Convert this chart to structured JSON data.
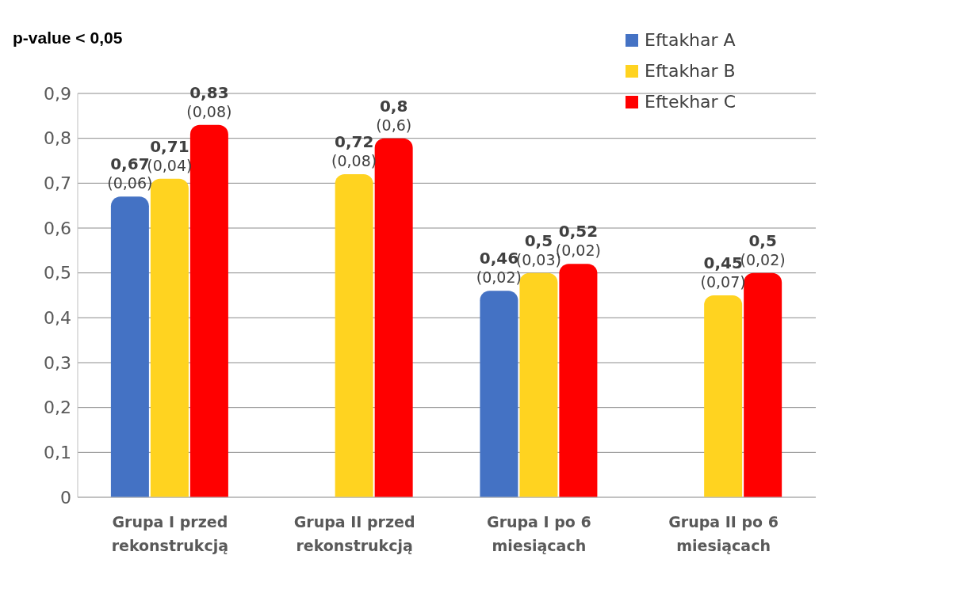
{
  "chart_data": {
    "type": "bar",
    "title": "p-value < 0,05",
    "categories": [
      "Grupa I przed rekonstrukcją",
      "Grupa II przed rekonstrukcją",
      "Grupa I po 6 miesiącach",
      "Grupa II po 6 miesiącach"
    ],
    "series": [
      {
        "name": "Eftakhar A",
        "color": "#4472c4",
        "values": [
          0.67,
          null,
          0.46,
          null
        ],
        "value_labels": [
          "0,67 (0,06)",
          null,
          "0,46 (0,02)",
          null
        ]
      },
      {
        "name": "Eftakhar B",
        "color": "#ffd320",
        "values": [
          0.71,
          0.72,
          0.5,
          0.45
        ],
        "value_labels": [
          "0,71 (0,04)",
          "0,72 (0,08)",
          "0,5 (0,03)",
          "0,45 (0,07)"
        ]
      },
      {
        "name": "Eftekhar C",
        "color": "#ff0000",
        "values": [
          0.83,
          0.8,
          0.52,
          0.5
        ],
        "value_labels": [
          "0,83 (0,08)",
          "0,8 (0,6)",
          "0,52 (0,02)",
          "0,5 (0,02)"
        ]
      }
    ],
    "ylim": [
      0,
      0.9
    ],
    "yticks": [
      0,
      {
        "value": 0.1,
        "label": "0,1"
      },
      {
        "value": 0.2,
        "label": "0,2"
      },
      {
        "value": 0.3,
        "label": "0,3"
      },
      {
        "value": 0.4,
        "label": "0,4"
      },
      {
        "value": 0.5,
        "label": "0,5"
      },
      {
        "value": 0.6,
        "label": "0,6"
      },
      {
        "value": 0.7,
        "label": "0,7"
      },
      {
        "value": 0.8,
        "label": "0,8"
      },
      {
        "value": 0.9,
        "label": "0,9"
      }
    ],
    "grid": "y",
    "legend": "top right"
  }
}
